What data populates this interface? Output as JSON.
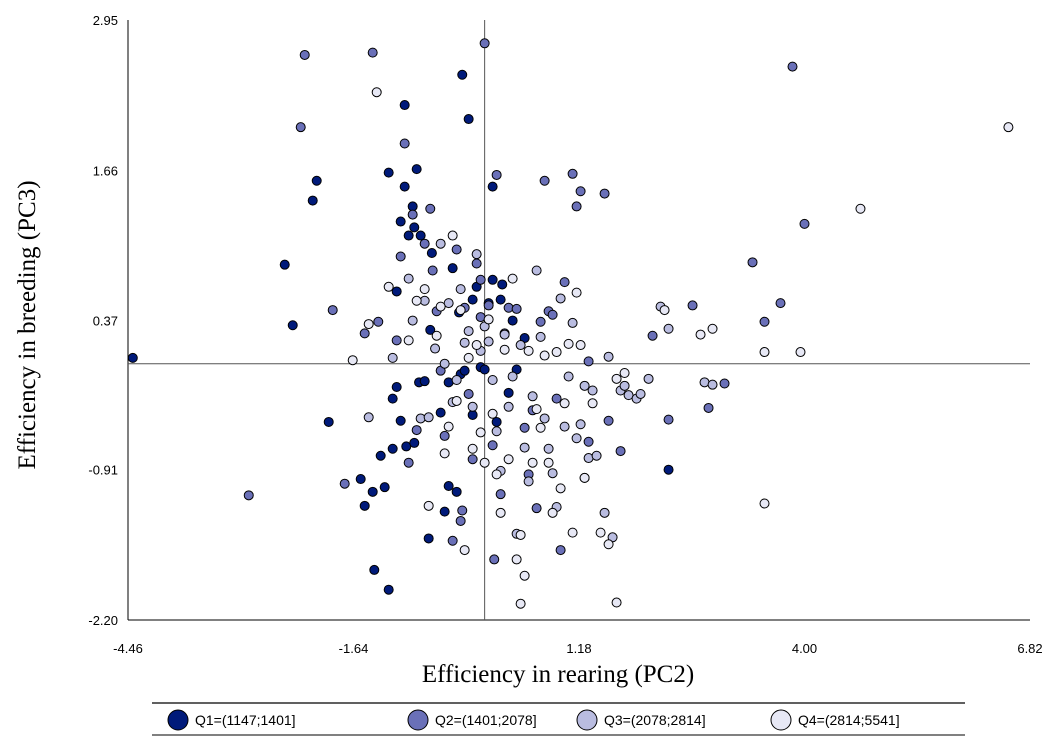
{
  "chart_data": {
    "type": "scatter",
    "title": "",
    "xlabel": "Efficiency in rearing (PC2)",
    "ylabel": "Efficiency in breeding (PC3)",
    "xlim": [
      -4.46,
      6.82
    ],
    "ylim": [
      -2.2,
      2.95
    ],
    "x_ticks": [
      "-4.46",
      "-1.64",
      "1.18",
      "4.00",
      "6.82"
    ],
    "y_ticks": [
      "2.95",
      "1.66",
      "0.37",
      "-0.91",
      "-2.20"
    ],
    "reference_lines": {
      "x": 0.0,
      "y": 0.0
    },
    "legend_position": "bottom",
    "series": [
      {
        "name": "Q1=(1147;1401]",
        "color": "#001a7a",
        "points": [
          [
            -4.4,
            0.05
          ],
          [
            -2.5,
            0.85
          ],
          [
            -2.4,
            0.33
          ],
          [
            -2.15,
            1.4
          ],
          [
            -2.1,
            1.57
          ],
          [
            -1.95,
            -0.5
          ],
          [
            -1.55,
            -0.99
          ],
          [
            -1.5,
            -1.22
          ],
          [
            -1.4,
            -1.1
          ],
          [
            -1.38,
            -1.77
          ],
          [
            -1.3,
            -0.79
          ],
          [
            -1.25,
            -1.06
          ],
          [
            -1.2,
            1.64
          ],
          [
            -1.2,
            -1.94
          ],
          [
            -1.15,
            -0.73
          ],
          [
            -1.15,
            -0.3
          ],
          [
            -1.1,
            -0.2
          ],
          [
            -1.1,
            0.62
          ],
          [
            -1.05,
            -0.49
          ],
          [
            -1.05,
            1.22
          ],
          [
            -1.0,
            1.52
          ],
          [
            -1.0,
            2.22
          ],
          [
            -0.98,
            -0.71
          ],
          [
            -0.95,
            1.1
          ],
          [
            -0.9,
            1.35
          ],
          [
            -0.88,
            -0.68
          ],
          [
            -0.88,
            1.17
          ],
          [
            -0.85,
            1.67
          ],
          [
            -0.82,
            -0.16
          ],
          [
            -0.8,
            1.1
          ],
          [
            -0.75,
            -0.15
          ],
          [
            -0.7,
            -1.5
          ],
          [
            -0.68,
            0.29
          ],
          [
            -0.66,
            0.95
          ],
          [
            -0.55,
            -0.42
          ],
          [
            -0.5,
            -1.27
          ],
          [
            -0.45,
            -0.16
          ],
          [
            -0.45,
            -1.05
          ],
          [
            -0.4,
            0.82
          ],
          [
            -0.35,
            -1.1
          ],
          [
            -0.32,
            0.44
          ],
          [
            -0.3,
            -0.09
          ],
          [
            -0.28,
            2.48
          ],
          [
            -0.25,
            -0.06
          ],
          [
            -0.2,
            2.1
          ],
          [
            -0.15,
            -0.44
          ],
          [
            -0.15,
            0.55
          ],
          [
            -0.1,
            0.66
          ],
          [
            -0.05,
            -0.03
          ],
          [
            0.0,
            -0.05
          ],
          [
            0.05,
            0.52
          ],
          [
            0.1,
            0.72
          ],
          [
            0.1,
            1.52
          ],
          [
            0.15,
            -0.5
          ],
          [
            0.2,
            0.55
          ],
          [
            0.22,
            0.68
          ],
          [
            0.3,
            -0.25
          ],
          [
            0.35,
            0.37
          ],
          [
            0.4,
            -0.05
          ],
          [
            0.5,
            0.22
          ],
          [
            1.25,
            -0.98
          ],
          [
            2.3,
            -0.91
          ]
        ]
      },
      {
        "name": "Q2=(1401;2078]",
        "color": "#6a70b8",
        "points": [
          [
            -2.95,
            -1.13
          ],
          [
            -2.25,
            2.65
          ],
          [
            -2.3,
            2.03
          ],
          [
            -1.9,
            0.46
          ],
          [
            -1.75,
            -1.03
          ],
          [
            -1.5,
            0.26
          ],
          [
            -1.4,
            2.67
          ],
          [
            -1.33,
            0.36
          ],
          [
            -1.1,
            0.2
          ],
          [
            -1.05,
            0.92
          ],
          [
            -1.0,
            1.89
          ],
          [
            -0.95,
            -0.85
          ],
          [
            -0.9,
            1.28
          ],
          [
            -0.85,
            -0.57
          ],
          [
            -0.75,
            1.03
          ],
          [
            -0.68,
            1.33
          ],
          [
            -0.65,
            0.8
          ],
          [
            -0.6,
            0.45
          ],
          [
            -0.55,
            -0.06
          ],
          [
            -0.5,
            -0.62
          ],
          [
            -0.4,
            -1.52
          ],
          [
            -0.35,
            0.98
          ],
          [
            -0.3,
            -1.35
          ],
          [
            -0.28,
            -1.26
          ],
          [
            -0.25,
            0.48
          ],
          [
            -0.2,
            -0.26
          ],
          [
            -0.15,
            -0.82
          ],
          [
            -0.1,
            0.86
          ],
          [
            -0.05,
            0.72
          ],
          [
            -0.05,
            0.4
          ],
          [
            0.0,
            2.75
          ],
          [
            0.05,
            0.5
          ],
          [
            0.1,
            -0.7
          ],
          [
            0.12,
            -1.68
          ],
          [
            0.15,
            1.62
          ],
          [
            0.2,
            -1.12
          ],
          [
            0.25,
            0.26
          ],
          [
            0.3,
            0.48
          ],
          [
            0.4,
            0.47
          ],
          [
            0.5,
            -0.55
          ],
          [
            0.55,
            -0.95
          ],
          [
            0.6,
            -0.4
          ],
          [
            0.65,
            -1.24
          ],
          [
            0.7,
            0.36
          ],
          [
            0.75,
            1.57
          ],
          [
            0.8,
            0.45
          ],
          [
            0.85,
            0.42
          ],
          [
            0.9,
            -0.3
          ],
          [
            0.95,
            -1.6
          ],
          [
            1.0,
            0.7
          ],
          [
            1.1,
            1.63
          ],
          [
            1.15,
            1.35
          ],
          [
            1.2,
            1.48
          ],
          [
            1.3,
            0.02
          ],
          [
            1.3,
            -0.67
          ],
          [
            1.5,
            1.46
          ],
          [
            1.55,
            -0.49
          ],
          [
            1.7,
            -0.75
          ],
          [
            2.1,
            0.24
          ],
          [
            2.3,
            -0.48
          ],
          [
            2.6,
            0.5
          ],
          [
            2.8,
            -0.38
          ],
          [
            3.0,
            -0.17
          ],
          [
            3.35,
            0.87
          ],
          [
            3.5,
            0.36
          ],
          [
            3.7,
            0.52
          ],
          [
            3.85,
            2.55
          ],
          [
            4.0,
            1.2
          ]
        ]
      },
      {
        "name": "Q3=(2078;2814]",
        "color": "#b9bce0",
        "points": [
          [
            -1.45,
            -0.46
          ],
          [
            -1.15,
            0.05
          ],
          [
            -0.95,
            0.73
          ],
          [
            -0.9,
            0.37
          ],
          [
            -0.8,
            -0.47
          ],
          [
            -0.75,
            0.54
          ],
          [
            -0.7,
            -0.46
          ],
          [
            -0.62,
            0.13
          ],
          [
            -0.55,
            1.03
          ],
          [
            -0.5,
            0.0
          ],
          [
            -0.45,
            0.52
          ],
          [
            -0.4,
            -0.33
          ],
          [
            -0.35,
            -0.14
          ],
          [
            -0.3,
            0.64
          ],
          [
            -0.25,
            0.18
          ],
          [
            -0.2,
            0.28
          ],
          [
            -0.15,
            -0.37
          ],
          [
            -0.1,
            0.94
          ],
          [
            -0.05,
            0.11
          ],
          [
            0.0,
            0.32
          ],
          [
            0.05,
            0.19
          ],
          [
            0.1,
            -0.14
          ],
          [
            0.15,
            -0.58
          ],
          [
            0.2,
            -0.92
          ],
          [
            0.25,
            0.25
          ],
          [
            0.3,
            -0.37
          ],
          [
            0.35,
            -0.11
          ],
          [
            0.4,
            -1.46
          ],
          [
            0.45,
            0.16
          ],
          [
            0.5,
            -0.72
          ],
          [
            0.55,
            -1.01
          ],
          [
            0.6,
            -0.28
          ],
          [
            0.65,
            0.8
          ],
          [
            0.7,
            0.23
          ],
          [
            0.75,
            -0.47
          ],
          [
            0.8,
            -0.73
          ],
          [
            0.85,
            -0.94
          ],
          [
            0.9,
            -1.23
          ],
          [
            0.95,
            0.56
          ],
          [
            1.0,
            -0.54
          ],
          [
            1.05,
            -0.11
          ],
          [
            1.1,
            0.35
          ],
          [
            1.15,
            -0.64
          ],
          [
            1.2,
            -0.52
          ],
          [
            1.25,
            -0.19
          ],
          [
            1.3,
            -0.81
          ],
          [
            1.35,
            -0.23
          ],
          [
            1.4,
            -0.79
          ],
          [
            1.5,
            -1.28
          ],
          [
            1.55,
            0.06
          ],
          [
            1.6,
            -1.49
          ],
          [
            1.7,
            -0.23
          ],
          [
            1.75,
            -0.19
          ],
          [
            1.8,
            -0.27
          ],
          [
            1.9,
            -0.3
          ],
          [
            1.95,
            -0.26
          ],
          [
            2.05,
            -0.13
          ],
          [
            2.2,
            0.49
          ],
          [
            2.3,
            0.3
          ],
          [
            2.75,
            -0.16
          ],
          [
            2.85,
            -0.18
          ]
        ]
      },
      {
        "name": "Q4=(2814;5541]",
        "color": "#e7e8f5",
        "points": [
          [
            -1.65,
            0.03
          ],
          [
            -1.45,
            0.34
          ],
          [
            -1.35,
            2.33
          ],
          [
            -1.2,
            0.66
          ],
          [
            -0.95,
            0.2
          ],
          [
            -0.85,
            0.54
          ],
          [
            -0.75,
            0.64
          ],
          [
            -0.7,
            -1.22
          ],
          [
            -0.6,
            0.24
          ],
          [
            -0.55,
            0.49
          ],
          [
            -0.5,
            -0.77
          ],
          [
            -0.45,
            -0.54
          ],
          [
            -0.4,
            1.1
          ],
          [
            -0.35,
            -0.32
          ],
          [
            -0.3,
            0.46
          ],
          [
            -0.25,
            -1.6
          ],
          [
            -0.2,
            0.05
          ],
          [
            -0.15,
            -0.73
          ],
          [
            -0.1,
            0.16
          ],
          [
            -0.05,
            -0.59
          ],
          [
            0.0,
            -0.85
          ],
          [
            0.05,
            0.38
          ],
          [
            0.1,
            -0.43
          ],
          [
            0.15,
            -0.95
          ],
          [
            0.2,
            -1.28
          ],
          [
            0.25,
            0.12
          ],
          [
            0.3,
            -0.82
          ],
          [
            0.35,
            0.73
          ],
          [
            0.4,
            -1.68
          ],
          [
            0.45,
            -1.47
          ],
          [
            0.5,
            -1.82
          ],
          [
            0.55,
            0.11
          ],
          [
            0.6,
            -0.85
          ],
          [
            0.65,
            -0.39
          ],
          [
            0.7,
            -0.55
          ],
          [
            0.75,
            0.07
          ],
          [
            0.8,
            -0.85
          ],
          [
            0.85,
            -1.28
          ],
          [
            0.9,
            0.1
          ],
          [
            0.95,
            -1.07
          ],
          [
            1.0,
            -0.34
          ],
          [
            1.05,
            0.17
          ],
          [
            1.1,
            -1.45
          ],
          [
            1.15,
            0.61
          ],
          [
            1.2,
            0.16
          ],
          [
            1.25,
            -0.98
          ],
          [
            1.35,
            -0.34
          ],
          [
            1.45,
            -1.45
          ],
          [
            1.55,
            -1.55
          ],
          [
            1.65,
            -0.13
          ],
          [
            1.75,
            -0.08
          ],
          [
            2.25,
            0.46
          ],
          [
            2.7,
            0.25
          ],
          [
            2.85,
            0.3
          ],
          [
            3.5,
            -1.2
          ],
          [
            3.5,
            0.1
          ],
          [
            3.95,
            0.1
          ],
          [
            4.7,
            1.33
          ],
          [
            6.55,
            2.03
          ],
          [
            1.65,
            -2.05
          ],
          [
            0.45,
            -2.06
          ]
        ]
      }
    ]
  }
}
